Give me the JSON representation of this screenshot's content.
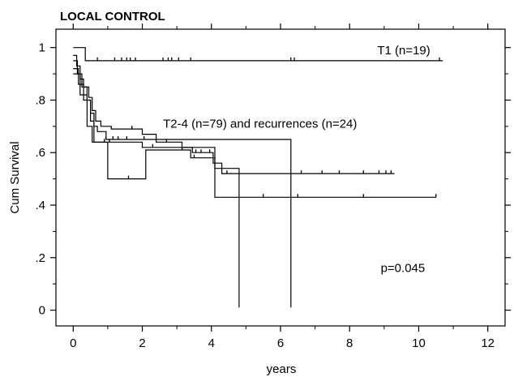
{
  "chart_data": {
    "type": "line",
    "subtype": "kaplan-meier",
    "title": "LOCAL CONTROL",
    "xlabel": "years",
    "ylabel": "Cum Survival",
    "xlim": [
      -0.5,
      12.5
    ],
    "ylim": [
      -0.06,
      1.07
    ],
    "x_ticks": [
      0,
      2,
      4,
      6,
      8,
      10,
      12
    ],
    "x_tick_labels": [
      "0",
      "2",
      "4",
      "6",
      "8",
      "10",
      "12"
    ],
    "y_ticks": [
      0,
      0.2,
      0.4,
      0.6,
      0.8,
      1.0
    ],
    "y_tick_labels": [
      "0",
      ".2",
      ".4",
      ".6",
      ".8",
      "1"
    ],
    "grid": false,
    "series": [
      {
        "label": "T1 (n=19)",
        "steps": [
          [
            0,
            1.0
          ],
          [
            0.35,
            0.95
          ],
          [
            10.7,
            0.95
          ]
        ],
        "censored_x": [
          0.7,
          1.2,
          1.4,
          1.55,
          1.65,
          1.8,
          2.6,
          2.75,
          2.85,
          3.05,
          3.4,
          6.3,
          6.4,
          10.6
        ]
      },
      {
        "label": "T2-4 (n=79) and recurrences (n=24)",
        "steps": [
          [
            0,
            0.97
          ],
          [
            0.1,
            0.93
          ],
          [
            0.2,
            0.88
          ],
          [
            0.3,
            0.85
          ],
          [
            0.45,
            0.81
          ],
          [
            0.55,
            0.76
          ],
          [
            0.65,
            0.72
          ],
          [
            0.8,
            0.7
          ],
          [
            1.1,
            0.69
          ],
          [
            2.0,
            0.67
          ],
          [
            2.4,
            0.64
          ],
          [
            3.15,
            0.62
          ],
          [
            3.45,
            0.6
          ],
          [
            4.05,
            0.56
          ],
          [
            4.3,
            0.52
          ],
          [
            9.3,
            0.52
          ]
        ],
        "censored_x": [
          1.7,
          2.7,
          3.55,
          3.7,
          3.95,
          4.45,
          6.6,
          7.2,
          7.7,
          8.4,
          8.85,
          9.05,
          9.2
        ]
      },
      {
        "label": "",
        "steps": [
          [
            0,
            0.95
          ],
          [
            0.12,
            0.9
          ],
          [
            0.25,
            0.85
          ],
          [
            0.4,
            0.8
          ],
          [
            0.5,
            0.75
          ],
          [
            0.6,
            0.7
          ],
          [
            0.7,
            0.68
          ],
          [
            0.95,
            0.65
          ],
          [
            2.1,
            0.65
          ],
          [
            6.3,
            0.65
          ],
          [
            6.3,
            0.01
          ]
        ],
        "censored_x": [
          0.95,
          1.15,
          1.3,
          1.55,
          2.05
        ]
      },
      {
        "label": "",
        "steps": [
          [
            0,
            0.92
          ],
          [
            0.15,
            0.86
          ],
          [
            0.3,
            0.8
          ],
          [
            0.5,
            0.72
          ],
          [
            0.6,
            0.64
          ],
          [
            1.0,
            0.5
          ],
          [
            2.0,
            0.5
          ],
          [
            2.1,
            0.61
          ],
          [
            3.35,
            0.61
          ],
          [
            3.4,
            0.58
          ],
          [
            4.05,
            0.58
          ],
          [
            4.1,
            0.43
          ],
          [
            10.5,
            0.43
          ]
        ],
        "censored_x": [
          1.6,
          3.15,
          3.5,
          5.5,
          6.5,
          8.4,
          10.5
        ]
      },
      {
        "label": "",
        "steps": [
          [
            0,
            0.9
          ],
          [
            0.2,
            0.82
          ],
          [
            0.4,
            0.7
          ],
          [
            0.55,
            0.64
          ],
          [
            2.0,
            0.62
          ],
          [
            4.1,
            0.54
          ],
          [
            4.8,
            0.54
          ],
          [
            4.8,
            0.01
          ]
        ],
        "censored_x": [
          0.9,
          1.05,
          2.3
        ]
      }
    ],
    "annotations": [
      {
        "text": "T1 (n=19)",
        "x": 8.8,
        "y": 0.975
      },
      {
        "text": "T2-4 (n=79) and recurrences (n=24)",
        "x": 2.6,
        "y": 0.695
      },
      {
        "text": "p=0.045",
        "x": 8.9,
        "y": 0.145
      }
    ]
  }
}
